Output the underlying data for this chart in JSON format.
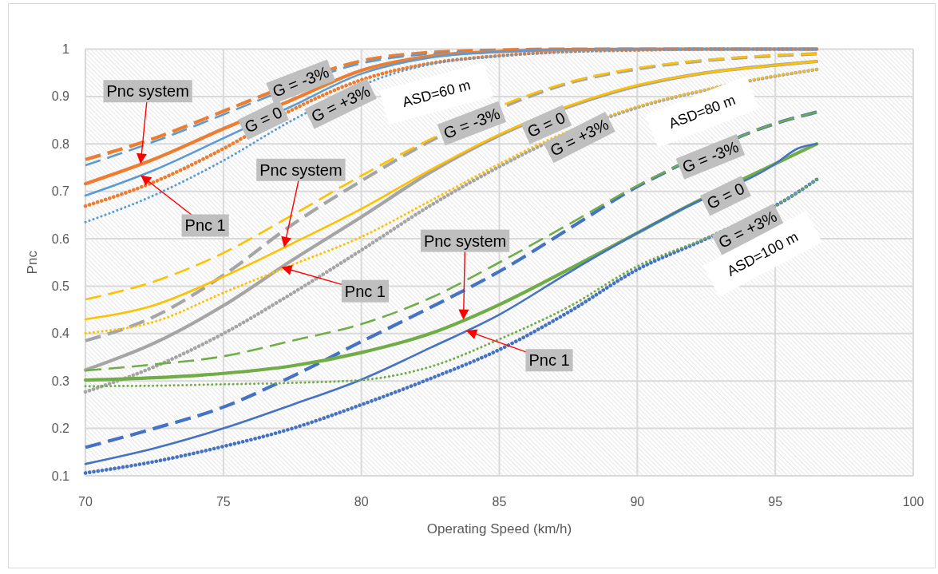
{
  "chart_data": {
    "type": "line",
    "xlabel": "Operating Speed (km/h)",
    "ylabel": "Pnc",
    "x": [
      70,
      72.5,
      75,
      77.5,
      80,
      82.5,
      85,
      87.5,
      90,
      92.5,
      95,
      96.5
    ],
    "xlim": [
      70,
      100
    ],
    "xticks": [
      70,
      75,
      80,
      85,
      90,
      95,
      100
    ],
    "ylim": [
      0.1,
      1
    ],
    "yticks": [
      0.1,
      0.2,
      0.3,
      0.4,
      0.5,
      0.6,
      0.7,
      0.8,
      0.9,
      1
    ],
    "grid": true,
    "series": [
      {
        "color": "#ed7d31",
        "line_style": "dashed",
        "x": [
          70,
          72.5,
          75,
          76.2,
          80,
          82.5,
          85,
          87.5,
          90,
          92.5,
          95,
          96.5
        ],
        "values": [
          0.767,
          0.812,
          0.869,
          0.897,
          0.975,
          0.993,
          0.998,
          1,
          1,
          1,
          1,
          1
        ]
      },
      {
        "color": "#5b9bd5",
        "line_style": "dashed",
        "x": [
          70,
          72.5,
          75,
          76.2,
          80,
          82.5,
          85,
          87.5,
          90,
          92.5,
          95,
          96.5
        ],
        "values": [
          0.755,
          0.805,
          0.862,
          0.89,
          0.97,
          0.99,
          0.997,
          1,
          1,
          1,
          1,
          1
        ]
      },
      {
        "color": "#ed7d31",
        "line_style": "solid",
        "values": [
          0.716,
          0.768,
          0.832,
          0.893,
          0.955,
          0.985,
          0.995,
          0.999,
          1,
          1,
          1,
          1
        ]
      },
      {
        "color": "#5b9bd5",
        "line_style": "solid",
        "values": [
          0.691,
          0.745,
          0.812,
          0.88,
          0.948,
          0.982,
          0.994,
          0.999,
          1,
          1,
          1,
          1
        ]
      },
      {
        "color": "#ed7d31",
        "line_style": "dotted",
        "values": [
          0.669,
          0.72,
          0.79,
          0.872,
          0.935,
          0.97,
          0.986,
          0.995,
          0.998,
          1,
          1,
          1
        ]
      },
      {
        "color": "#5b9bd5",
        "line_style": "dotted",
        "x": [
          70,
          72.5,
          75,
          77.5,
          81.2,
          82.5,
          85,
          87.5,
          90,
          92.5,
          95,
          96.5
        ],
        "values": [
          0.635,
          0.692,
          0.765,
          0.85,
          0.949,
          0.968,
          0.985,
          0.994,
          0.998,
          1,
          1,
          1
        ]
      },
      {
        "color": "#a5a5a5",
        "line_style": "dashed",
        "x": [
          70,
          72.5,
          75,
          77.5,
          80,
          82.5,
          85.6,
          87.5,
          90,
          92.5,
          95,
          96.5
        ],
        "values": [
          0.385,
          0.436,
          0.523,
          0.63,
          0.722,
          0.806,
          0.889,
          0.928,
          0.958,
          0.976,
          0.986,
          0.99
        ]
      },
      {
        "color": "#ffc000",
        "line_style": "dashed",
        "x": [
          70,
          72.5,
          75,
          77.5,
          80,
          82.5,
          85.6,
          87.5,
          90,
          92.5,
          95,
          96.5
        ],
        "values": [
          0.472,
          0.51,
          0.57,
          0.65,
          0.733,
          0.81,
          0.893,
          0.93,
          0.96,
          0.977,
          0.987,
          0.99
        ]
      },
      {
        "color": "#a5a5a5",
        "line_style": "solid",
        "values": [
          0.323,
          0.38,
          0.459,
          0.555,
          0.646,
          0.74,
          0.818,
          0.878,
          0.922,
          0.95,
          0.966,
          0.974
        ]
      },
      {
        "color": "#ffc000",
        "line_style": "solid",
        "values": [
          0.43,
          0.46,
          0.52,
          0.59,
          0.663,
          0.745,
          0.82,
          0.88,
          0.924,
          0.95,
          0.966,
          0.974
        ]
      },
      {
        "color": "#a5a5a5",
        "line_style": "dotted",
        "x": [
          70,
          72.5,
          75,
          77.5,
          80,
          82.5,
          85,
          86.2,
          90,
          92.5,
          95,
          96.5
        ],
        "values": [
          0.277,
          0.33,
          0.4,
          0.485,
          0.576,
          0.67,
          0.752,
          0.788,
          0.877,
          0.914,
          0.943,
          0.957
        ]
      },
      {
        "color": "#ffc000",
        "line_style": "dotted",
        "x": [
          70,
          72.5,
          75,
          77.5,
          80,
          82.5,
          85,
          86.2,
          90,
          92.5,
          95,
          96.5
        ],
        "values": [
          0.401,
          0.425,
          0.486,
          0.545,
          0.604,
          0.68,
          0.758,
          0.793,
          0.879,
          0.915,
          0.944,
          0.957
        ]
      },
      {
        "color": "#4472c4",
        "line_style": "dashed",
        "x": [
          70,
          72.5,
          75,
          77.5,
          80,
          82.5,
          85,
          87.5,
          90,
          91,
          95,
          96.5
        ],
        "values": [
          0.16,
          0.2,
          0.245,
          0.31,
          0.383,
          0.455,
          0.531,
          0.62,
          0.71,
          0.74,
          0.843,
          0.867
        ]
      },
      {
        "color": "#70ad47",
        "line_style": "dashed",
        "x": [
          70,
          72.5,
          75,
          77.5,
          80,
          82.5,
          85,
          87.5,
          90,
          91,
          95,
          96.5
        ],
        "values": [
          0.322,
          0.335,
          0.352,
          0.385,
          0.42,
          0.475,
          0.55,
          0.63,
          0.712,
          0.741,
          0.843,
          0.867
        ]
      },
      {
        "color": "#70ad47",
        "line_style": "solid",
        "x": [
          70,
          72.5,
          75,
          77.5,
          80,
          82.5,
          85,
          87.5,
          90,
          91.5,
          95,
          96.5
        ],
        "values": [
          0.302,
          0.307,
          0.316,
          0.332,
          0.36,
          0.4,
          0.461,
          0.535,
          0.612,
          0.659,
          0.758,
          0.8
        ]
      },
      {
        "color": "#4472c4",
        "line_style": "solid",
        "x": [
          70,
          72.5,
          75,
          77.5,
          80,
          82.5,
          85,
          87.5,
          90,
          91.5,
          95,
          95.8,
          96.5
        ],
        "values": [
          0.125,
          0.158,
          0.2,
          0.25,
          0.303,
          0.37,
          0.44,
          0.528,
          0.612,
          0.659,
          0.758,
          0.79,
          0.8
        ]
      },
      {
        "color": "#4472c4",
        "line_style": "dotted",
        "x": [
          70,
          72.5,
          75,
          77.5,
          80,
          82.5,
          85,
          87.5,
          90,
          92.5,
          95.6,
          96.5
        ],
        "values": [
          0.106,
          0.13,
          0.162,
          0.2,
          0.25,
          0.305,
          0.366,
          0.445,
          0.535,
          0.6,
          0.69,
          0.725
        ]
      },
      {
        "color": "#70ad47",
        "line_style": "dotted",
        "x": [
          70,
          72.5,
          75,
          77.5,
          80,
          82.5,
          85,
          87.5,
          90,
          92.5,
          95.6,
          96.5
        ],
        "values": [
          0.289,
          0.29,
          0.293,
          0.296,
          0.302,
          0.33,
          0.388,
          0.456,
          0.542,
          0.602,
          0.69,
          0.725
        ]
      }
    ],
    "annotations": [
      {
        "text": "Pnc system",
        "x": 72,
        "y": 0.758
      },
      {
        "text": "Pnc 1",
        "x": 72,
        "y": 0.734
      },
      {
        "text": "G = -3%",
        "x": 77.8,
        "y": 0.933
      },
      {
        "text": "G = 0",
        "x": 76.45,
        "y": 0.851
      },
      {
        "text": "G = +3%",
        "x": 79.25,
        "y": 0.905
      },
      "ASD=60 m",
      {
        "text": "Pnc system",
        "x": 77.2,
        "y": 0.582
      },
      {
        "text": "Pnc 1",
        "x": 77.1,
        "y": 0.54
      },
      {
        "text": "G = -3%",
        "x": 84,
        "y": 0.852
      },
      {
        "text": "G = 0",
        "x": 86.7,
        "y": 0.861
      },
      {
        "text": "G = +3%",
        "x": 87.9,
        "y": 0.834
      },
      "ASD=80 m",
      {
        "text": "Pnc system",
        "x": 83.7,
        "y": 0.429
      },
      {
        "text": "Pnc 1",
        "x": 83.8,
        "y": 0.406
      },
      {
        "text": "G = -3%",
        "x": 92.65,
        "y": 0.788
      },
      {
        "text": "G = 0",
        "x": 93.2,
        "y": 0.709
      },
      {
        "text": "G = +3%",
        "x": 94,
        "y": 0.64
      },
      "ASD=100 m"
    ]
  }
}
